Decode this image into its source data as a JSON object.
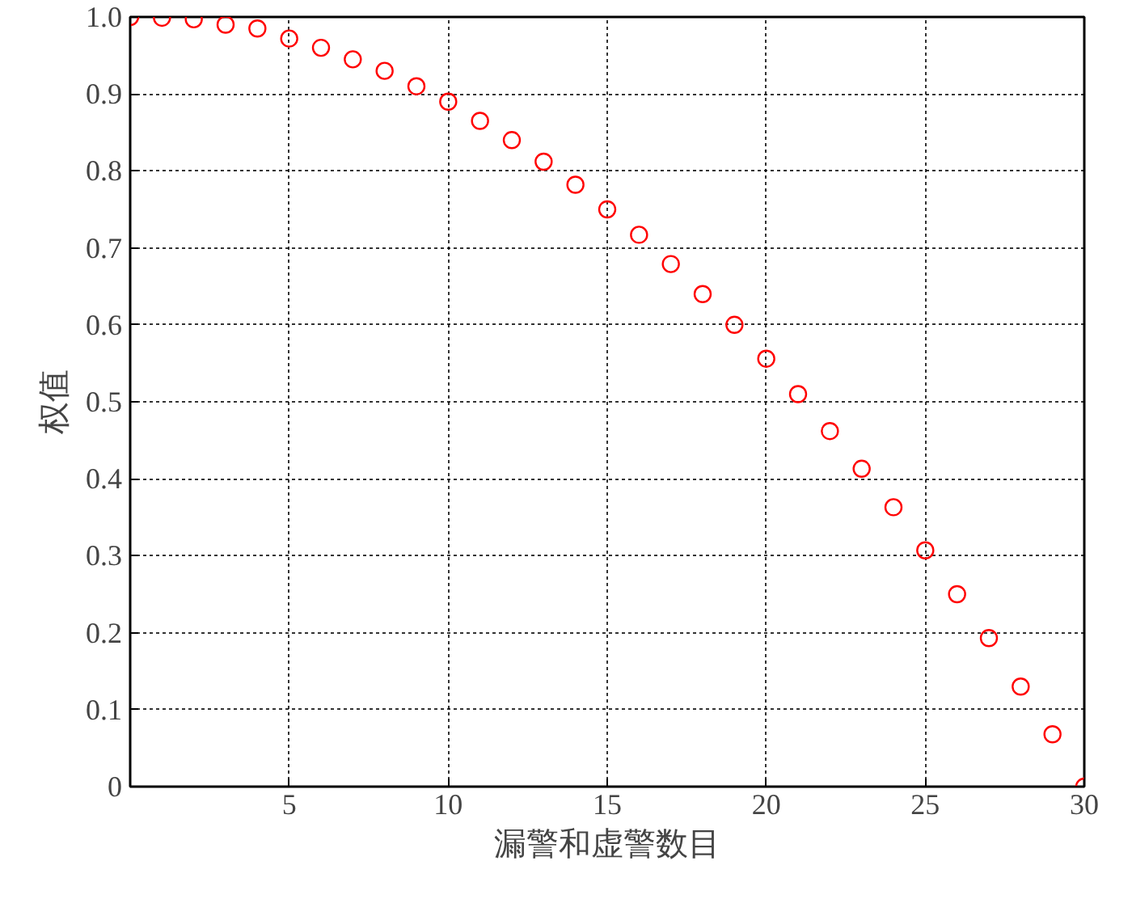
{
  "chart_data": {
    "type": "scatter",
    "xlabel": "漏警和虚警数目",
    "ylabel": "权值",
    "x": [
      0,
      1,
      2,
      3,
      4,
      5,
      6,
      7,
      8,
      9,
      10,
      11,
      12,
      13,
      14,
      15,
      16,
      17,
      18,
      19,
      20,
      21,
      22,
      23,
      24,
      25,
      26,
      27,
      28,
      29,
      30
    ],
    "series": [
      {
        "color": "#ff0000",
        "values": [
          1.0,
          0.999,
          0.997,
          0.99,
          0.985,
          0.972,
          0.96,
          0.945,
          0.93,
          0.91,
          0.89,
          0.865,
          0.84,
          0.812,
          0.782,
          0.75,
          0.717,
          0.679,
          0.64,
          0.6,
          0.556,
          0.51,
          0.462,
          0.413,
          0.363,
          0.307,
          0.25,
          0.193,
          0.13,
          0.068,
          0.0
        ]
      }
    ],
    "marker": "circle",
    "grid": true,
    "xlim": [
      0,
      30
    ],
    "ylim": [
      0,
      1
    ],
    "xticks": [
      {
        "value": 0,
        "label": null
      },
      5,
      10,
      15,
      20,
      25,
      30
    ],
    "yticks": [
      0,
      0.1,
      0.2,
      0.3,
      0.4,
      0.5,
      0.6,
      0.7,
      0.8,
      0.9,
      {
        "value": 1,
        "label": "1.0"
      }
    ]
  }
}
